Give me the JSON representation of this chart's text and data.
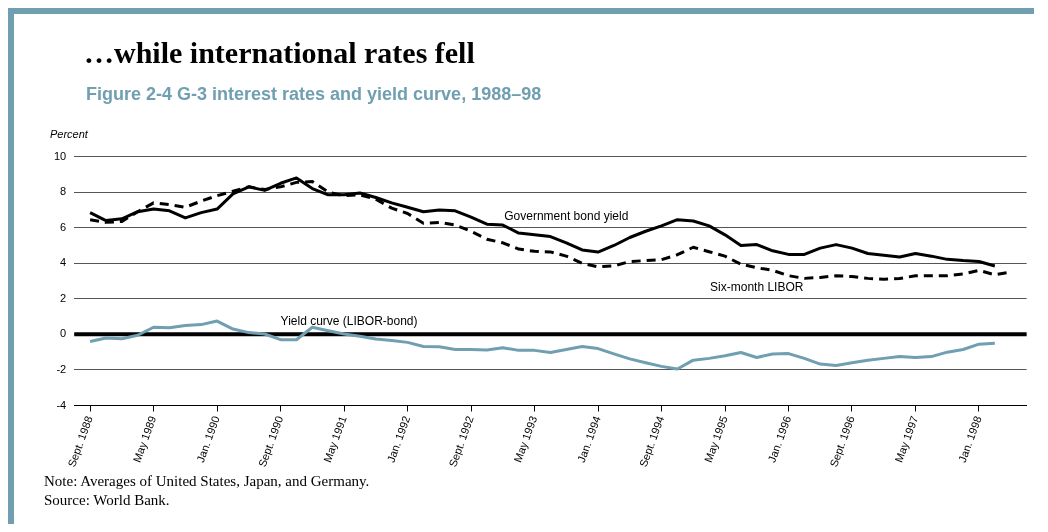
{
  "chart_data": {
    "type": "line",
    "title": "…while international rates fell",
    "subtitle": "Figure 2-4 G-3 interest rates and yield curve, 1988–98",
    "ylabel": "Percent",
    "categories": [
      null,
      "Sept. 1988",
      null,
      null,
      null,
      "May 1989",
      null,
      null,
      null,
      "Jan. 1990",
      null,
      null,
      null,
      "Sept. 1990",
      null,
      null,
      null,
      "May 1991",
      null,
      null,
      null,
      "Jan. 1992",
      null,
      null,
      null,
      "Sept. 1992",
      null,
      null,
      null,
      "May 1993",
      null,
      null,
      null,
      "Jan. 1994",
      null,
      null,
      null,
      "Sept. 1994",
      null,
      null,
      null,
      "May 1995",
      null,
      null,
      null,
      "Jan. 1996",
      null,
      null,
      null,
      "Sept. 1996",
      null,
      null,
      null,
      "May 1997",
      null,
      null,
      null,
      "Jan. 1998",
      null,
      null,
      null
    ],
    "series": [
      {
        "name": "Government bond yield",
        "color": "#000000",
        "line_style": "solid",
        "values": [
          null,
          6.85,
          6.4,
          6.5,
          6.9,
          7.05,
          6.95,
          6.55,
          6.85,
          7.05,
          7.9,
          8.3,
          8.1,
          8.5,
          8.8,
          8.2,
          7.85,
          7.85,
          7.95,
          7.7,
          7.4,
          7.15,
          6.9,
          7.0,
          6.95,
          6.6,
          6.2,
          6.15,
          5.7,
          5.6,
          5.5,
          5.15,
          4.75,
          4.63,
          5.0,
          5.45,
          5.8,
          6.1,
          6.45,
          6.38,
          6.1,
          5.6,
          5.0,
          5.05,
          4.7,
          4.5,
          4.5,
          4.85,
          5.05,
          4.85,
          4.55,
          4.45,
          4.35,
          4.55,
          4.4,
          4.22,
          4.15,
          4.1,
          3.85,
          null,
          null
        ]
      },
      {
        "name": "Six-month LIBOR",
        "color": "#000000",
        "line_style": "dashed",
        "values": [
          null,
          6.45,
          6.3,
          6.35,
          6.9,
          7.4,
          7.3,
          7.15,
          7.5,
          7.8,
          8.05,
          8.3,
          8.15,
          8.3,
          8.55,
          8.6,
          8.0,
          7.8,
          7.85,
          7.6,
          7.1,
          6.8,
          6.25,
          6.3,
          6.15,
          5.8,
          5.35,
          5.15,
          4.8,
          4.67,
          4.64,
          4.4,
          4.0,
          3.8,
          3.85,
          4.1,
          4.15,
          4.2,
          4.48,
          4.9,
          4.65,
          4.4,
          3.95,
          3.75,
          3.6,
          3.3,
          3.15,
          3.2,
          3.3,
          3.25,
          3.15,
          3.1,
          3.14,
          3.3,
          3.3,
          3.3,
          3.4,
          3.6,
          3.35,
          3.5,
          null
        ]
      },
      {
        "name": "Yield curve (LIBOR-bond)",
        "color": "#6f9fb0",
        "line_style": "solid",
        "values": [
          null,
          -0.4,
          -0.2,
          -0.25,
          -0.05,
          0.4,
          0.37,
          0.5,
          0.55,
          0.75,
          0.3,
          0.1,
          0.02,
          -0.3,
          -0.3,
          0.4,
          0.2,
          0.02,
          -0.1,
          -0.26,
          -0.35,
          -0.45,
          -0.68,
          -0.7,
          -0.85,
          -0.85,
          -0.88,
          -0.75,
          -0.9,
          -0.9,
          -1.02,
          -0.85,
          -0.68,
          -0.8,
          -1.1,
          -1.38,
          -1.6,
          -1.8,
          -1.95,
          -1.45,
          -1.35,
          -1.2,
          -1.02,
          -1.3,
          -1.1,
          -1.08,
          -1.35,
          -1.67,
          -1.75,
          -1.6,
          -1.45,
          -1.35,
          -1.25,
          -1.3,
          -1.25,
          -1.0,
          -0.85,
          -0.55,
          -0.5,
          null,
          null
        ]
      }
    ],
    "ylim": [
      -4,
      10
    ],
    "yticks": [
      -4,
      -2,
      0,
      2,
      4,
      6,
      8,
      10
    ],
    "grid": "y",
    "legend": false,
    "marker": "none",
    "ref_lines": [
      {
        "axis": "y",
        "value": 0,
        "color": "#000000"
      }
    ],
    "annotations": [
      "Note: Averages of United States, Japan, and Germany.",
      "Source: World Bank."
    ]
  }
}
